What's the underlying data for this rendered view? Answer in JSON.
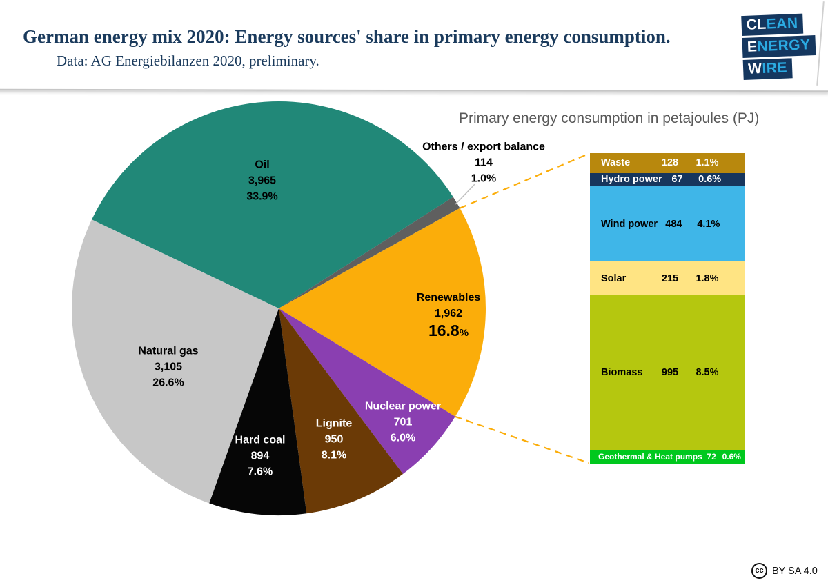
{
  "header": {
    "title": "German energy mix 2020: Energy sources' share in primary energy consumption.",
    "subtitle": "Data: AG Energiebilanzen 2020, preliminary."
  },
  "logo": {
    "lines": [
      {
        "white": "CL",
        "cyan": "EAN"
      },
      {
        "white": "E",
        "cyan": "NERGY"
      },
      {
        "white": "W",
        "cyan": "IRE"
      }
    ],
    "box_color": "#15375f",
    "cyan_color": "#2baae2"
  },
  "footer": {
    "cc_glyph": "cc",
    "license": "BY SA 4.0"
  },
  "chart_data": {
    "type": "pie",
    "title": "German energy mix 2020: Energy sources' share in primary energy consumption.",
    "unit": "petajoules (PJ)",
    "connector_color": "#fbad0a",
    "slices": [
      {
        "key": "oil",
        "label": "Oil",
        "value_text": "3,965",
        "pct_text": "33.9%",
        "value": 3965,
        "share": 33.9,
        "color": "#218878",
        "text_color": "#000000"
      },
      {
        "key": "others",
        "label": "Others / export balance",
        "value_text": "114",
        "pct_text": "1.0%",
        "value": 114,
        "share": 1.0,
        "color": "#5f5f5f",
        "text_color": "#000000",
        "outside": true
      },
      {
        "key": "renewables",
        "label": "Renewables",
        "value_text": "1,962",
        "pct_text": "16.8%",
        "value": 1962,
        "share": 16.8,
        "color": "#fbad0a",
        "text_color": "#000000",
        "big_pct": true
      },
      {
        "key": "nuclear",
        "label": "Nuclear power",
        "value_text": "701",
        "pct_text": "6.0%",
        "value": 701,
        "share": 6.0,
        "color": "#8a3fb1",
        "text_color": "#ffffff"
      },
      {
        "key": "lignite",
        "label": "Lignite",
        "value_text": "950",
        "pct_text": "8.1%",
        "value": 950,
        "share": 8.1,
        "color": "#6b3a06",
        "text_color": "#ffffff"
      },
      {
        "key": "hard_coal",
        "label": "Hard coal",
        "value_text": "894",
        "pct_text": "7.6%",
        "value": 894,
        "share": 7.6,
        "color": "#060606",
        "text_color": "#ffffff"
      },
      {
        "key": "natural_gas",
        "label": "Natural gas",
        "value_text": "3,105",
        "pct_text": "26.6%",
        "value": 3105,
        "share": 26.6,
        "color": "#c7c7c7",
        "text_color": "#000000"
      }
    ],
    "renewables_breakdown": {
      "caption": "Primary energy consumption in petajoules (PJ)",
      "type": "stacked-bar",
      "segments": [
        {
          "key": "waste",
          "label": "Waste",
          "value_text": "128",
          "pct_text": "1.1%",
          "value": 128,
          "color": "#b8880d",
          "text_color": "#ffffff"
        },
        {
          "key": "hydro",
          "label": "Hydro power",
          "value_text": "67",
          "pct_text": "0.6%",
          "value": 67,
          "color": "#17365d",
          "text_color": "#ffffff"
        },
        {
          "key": "wind",
          "label": "Wind power",
          "value_text": "484",
          "pct_text": "4.1%",
          "value": 484,
          "color": "#3fb6e8",
          "text_color": "#000000"
        },
        {
          "key": "solar",
          "label": "Solar",
          "value_text": "215",
          "pct_text": "1.8%",
          "value": 215,
          "color": "#ffe483",
          "text_color": "#000000"
        },
        {
          "key": "biomass",
          "label": "Biomass",
          "value_text": "995",
          "pct_text": "8.5%",
          "value": 995,
          "color": "#b5c70f",
          "text_color": "#000000"
        },
        {
          "key": "geothermal",
          "label": "Geothermal & Heat pumps",
          "value_text": "72",
          "pct_text": "0.6%",
          "value": 72,
          "color": "#00c81e",
          "text_color": "#ffffff",
          "small": true
        }
      ]
    }
  }
}
